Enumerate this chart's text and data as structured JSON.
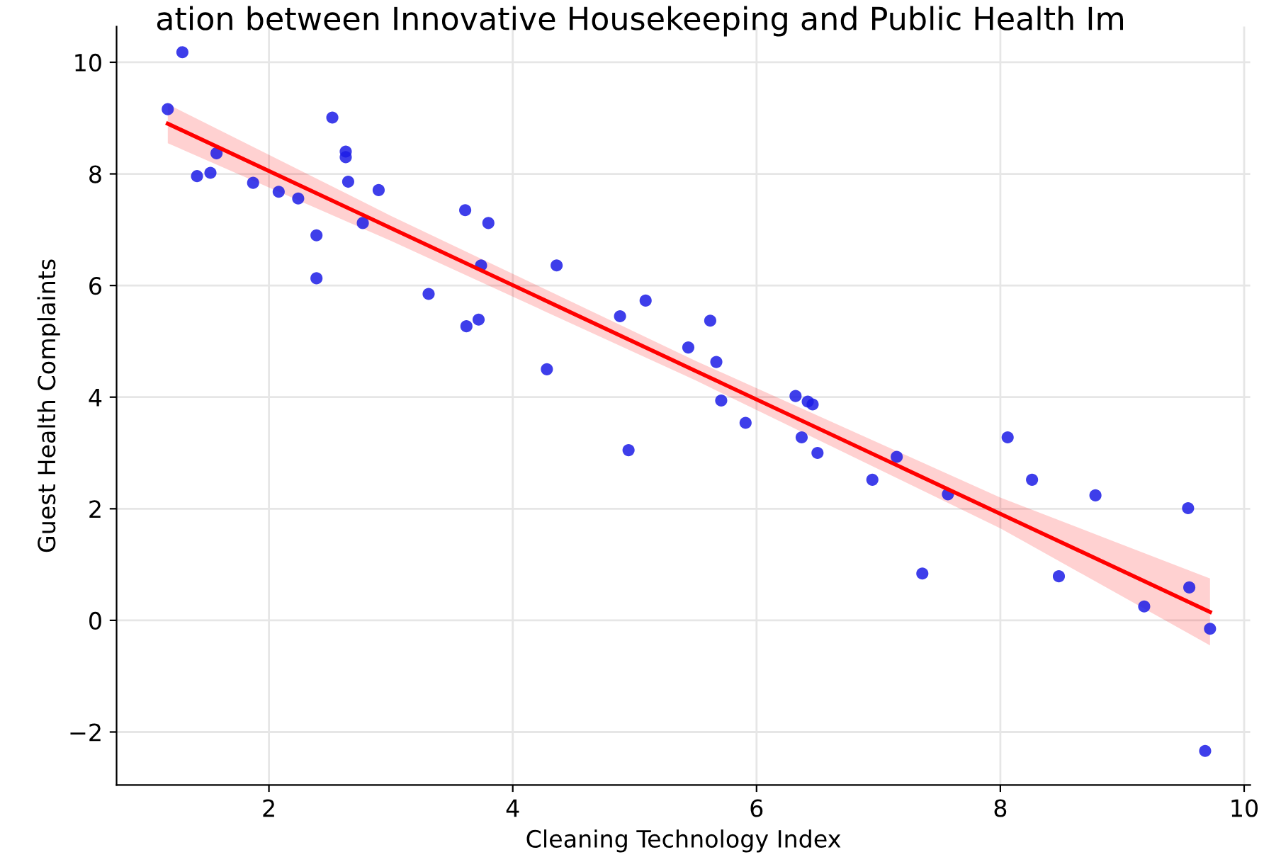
{
  "chart_data": {
    "type": "scatter",
    "title": "ation between Innovative Housekeeping and Public Health Im",
    "xlabel": "Cleaning Technology Index",
    "ylabel": "Guest Health Complaints",
    "series": [
      {
        "color": "#1c1ce6",
        "marker": "circle",
        "x": [
          1.17,
          1.29,
          1.41,
          1.52,
          1.57,
          1.87,
          2.08,
          2.24,
          2.39,
          2.39,
          2.52,
          2.63,
          2.63,
          2.65,
          2.77,
          2.9,
          3.31,
          3.61,
          3.8,
          3.74,
          3.62,
          3.72,
          4.36,
          4.28,
          4.88,
          5.09,
          4.95,
          5.44,
          5.62,
          5.67,
          5.71,
          5.91,
          6.32,
          6.42,
          6.46,
          6.37,
          6.5,
          6.95,
          7.15,
          7.36,
          7.57,
          8.06,
          8.26,
          8.48,
          8.78,
          9.18,
          9.54,
          9.55,
          9.72,
          9.68
        ],
        "values": [
          9.16,
          10.18,
          7.96,
          8.02,
          8.37,
          7.84,
          7.68,
          7.56,
          6.9,
          6.13,
          9.01,
          8.4,
          8.3,
          7.86,
          7.12,
          7.71,
          5.85,
          7.35,
          7.12,
          6.36,
          5.27,
          5.39,
          6.36,
          4.5,
          5.45,
          5.73,
          3.05,
          4.89,
          5.37,
          4.63,
          3.94,
          3.54,
          4.02,
          3.92,
          3.87,
          3.28,
          3.0,
          2.52,
          2.93,
          0.84,
          2.26,
          3.28,
          2.52,
          0.79,
          2.24,
          0.25,
          2.01,
          0.59,
          -0.15,
          -2.34
        ]
      },
      {
        "type": "line",
        "color": "#ff0000",
        "marker": "none",
        "line_style": "solid",
        "x": [
          1.17,
          3,
          5.5,
          8,
          9.72
        ],
        "values": [
          8.9,
          7.03,
          4.47,
          1.91,
          0.15
        ],
        "lower": [
          8.55,
          6.8,
          4.3,
          1.65,
          -0.45
        ],
        "upper": [
          9.25,
          7.25,
          4.65,
          2.2,
          0.75
        ]
      }
    ],
    "xlim": [
      0.75,
      10.05
    ],
    "ylim": [
      -2.95,
      10.64
    ],
    "xticks": [
      2,
      4,
      6,
      8,
      10
    ],
    "yticks": [
      -2,
      0,
      2,
      4,
      6,
      8,
      10
    ],
    "grid": true
  }
}
